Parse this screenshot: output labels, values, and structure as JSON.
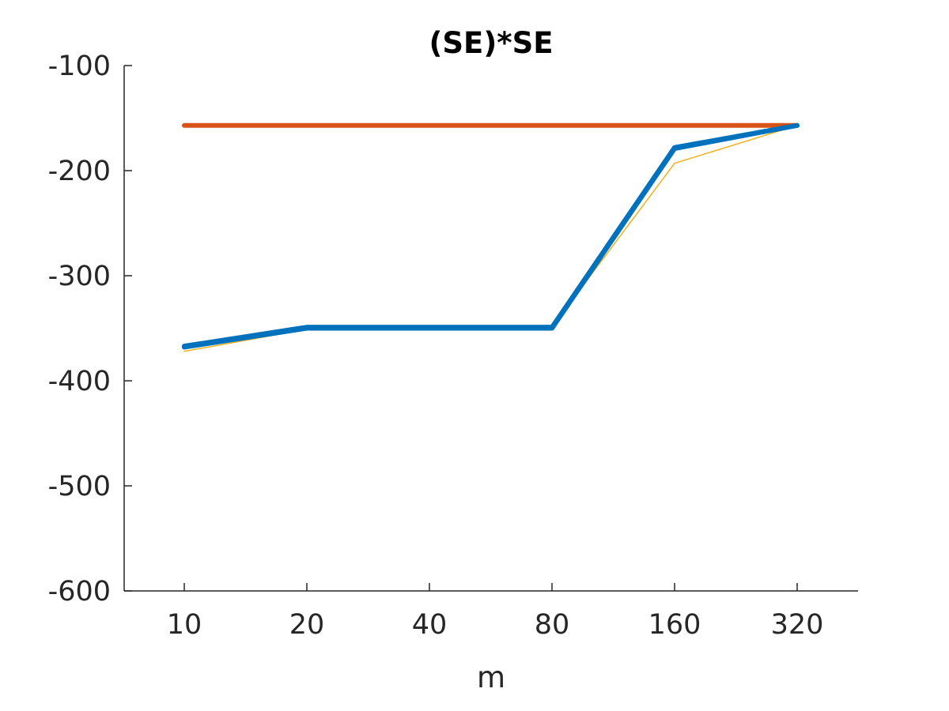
{
  "chart_data": {
    "type": "line",
    "title": "(SE)*SE",
    "xlabel": "m",
    "ylabel": "",
    "categories": [
      "10",
      "20",
      "40",
      "80",
      "160",
      "320"
    ],
    "ylim": [
      -600,
      -100
    ],
    "yticks": [
      -100,
      -200,
      -300,
      -400,
      -500,
      -600
    ],
    "ytick_labels": [
      "-100",
      "-200",
      "-300",
      "-400",
      "-500",
      "-600"
    ],
    "grid": false,
    "series": [
      {
        "name": "series-orange",
        "color": "#D95319",
        "line_width": "thick",
        "values": [
          -157,
          -157,
          -157,
          -157,
          -157,
          -157
        ]
      },
      {
        "name": "series-yellow",
        "color": "#EDB120",
        "line_width": "thin",
        "values": [
          -372,
          -351,
          -349,
          -349,
          -193,
          -157
        ]
      },
      {
        "name": "series-green",
        "color": "#77AC30",
        "line_width": "thin",
        "values": [
          -369,
          -350,
          -351,
          -351,
          -180,
          -157
        ]
      },
      {
        "name": "series-blue-a",
        "color": "#0072BD",
        "line_width": "thick",
        "values": [
          -368,
          -350,
          -350,
          -350,
          -179,
          -157
        ]
      },
      {
        "name": "series-blue-b",
        "color": "#0072BD",
        "line_width": "thick",
        "values": [
          -367,
          -349,
          -349,
          -349,
          -178,
          -157
        ]
      }
    ]
  }
}
